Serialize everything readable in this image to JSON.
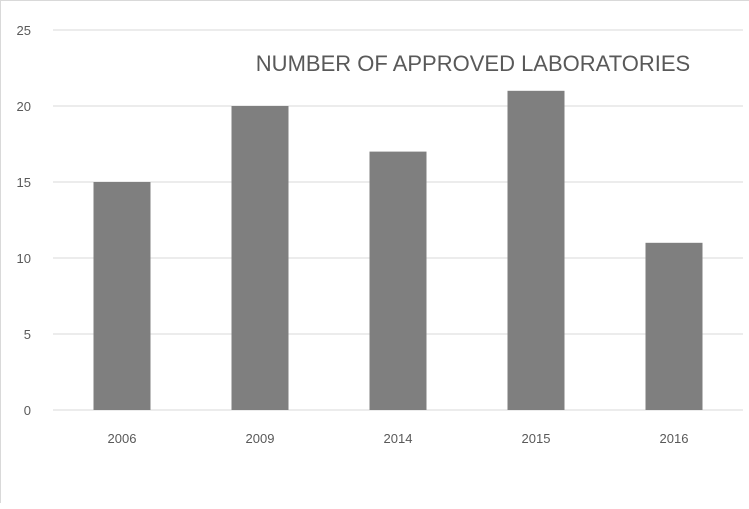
{
  "chart_data": {
    "type": "bar",
    "title": "NUMBER OF APPROVED LABORATORIES",
    "categories": [
      "2006",
      "2009",
      "2014",
      "2015",
      "2016"
    ],
    "values": [
      15,
      20,
      17,
      21,
      11
    ],
    "xlabel": "",
    "ylabel": "",
    "ylim": [
      0,
      25
    ],
    "yticks": [
      0,
      5,
      10,
      15,
      20,
      25
    ],
    "grid": true,
    "legend": "none",
    "bar_color": "#7f7f7f",
    "grid_color": "#d9d9d9",
    "text_color": "#595959"
  }
}
